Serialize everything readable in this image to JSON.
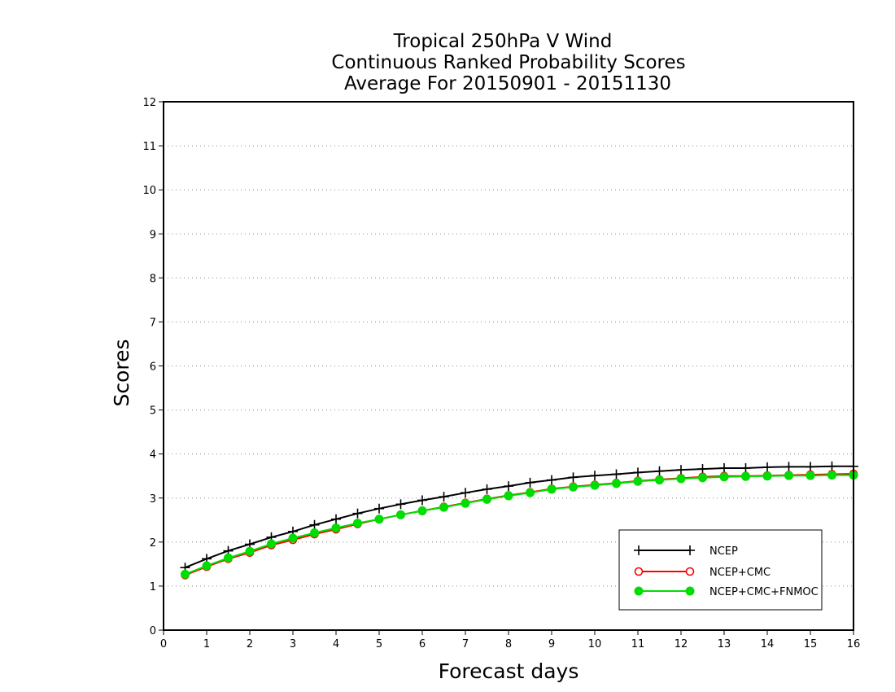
{
  "chart_data": {
    "type": "line",
    "title": [
      "Tropical 250hPa V Wind",
      "Continuous Ranked Probability Scores",
      "Average For 20150901 - 20151130"
    ],
    "xlabel": "Forecast days",
    "ylabel": "Scores",
    "xlim": [
      0,
      16
    ],
    "ylim": [
      0,
      12
    ],
    "xticks": [
      "0",
      "1",
      "2",
      "3",
      "4",
      "5",
      "6",
      "7",
      "8",
      "9",
      "10",
      "11",
      "12",
      "13",
      "14",
      "15",
      "16"
    ],
    "yticks": [
      "0",
      "1",
      "2",
      "3",
      "4",
      "5",
      "6",
      "7",
      "8",
      "9",
      "10",
      "11",
      "12"
    ],
    "grid": "horizontal dotted",
    "legend_position": "lower-right",
    "x": [
      0.5,
      1,
      1.5,
      2,
      2.5,
      3,
      3.5,
      4,
      4.5,
      5,
      5.5,
      6,
      6.5,
      7,
      7.5,
      8,
      8.5,
      9,
      9.5,
      10,
      10.5,
      11,
      11.5,
      12,
      12.5,
      13,
      13.5,
      14,
      14.5,
      15,
      15.5,
      16
    ],
    "series": [
      {
        "name": "NCEP",
        "color": "#000000",
        "marker": "plus",
        "values": [
          1.42,
          1.62,
          1.8,
          1.95,
          2.11,
          2.24,
          2.39,
          2.52,
          2.65,
          2.76,
          2.86,
          2.95,
          3.03,
          3.12,
          3.2,
          3.27,
          3.35,
          3.41,
          3.47,
          3.51,
          3.54,
          3.58,
          3.61,
          3.64,
          3.66,
          3.68,
          3.68,
          3.7,
          3.71,
          3.71,
          3.72,
          3.72
        ]
      },
      {
        "name": "NCEP+CMC",
        "color": "#ff0000",
        "marker": "open-circle",
        "values": [
          1.25,
          1.44,
          1.62,
          1.76,
          1.93,
          2.05,
          2.18,
          2.29,
          2.41,
          2.52,
          2.62,
          2.71,
          2.8,
          2.89,
          2.98,
          3.06,
          3.13,
          3.21,
          3.26,
          3.3,
          3.34,
          3.39,
          3.42,
          3.45,
          3.48,
          3.5,
          3.5,
          3.51,
          3.52,
          3.53,
          3.54,
          3.55
        ]
      },
      {
        "name": "NCEP+CMC+FNMOC",
        "color": "#00dd00",
        "marker": "filled-circle",
        "values": [
          1.27,
          1.46,
          1.64,
          1.79,
          1.96,
          2.09,
          2.21,
          2.32,
          2.43,
          2.52,
          2.62,
          2.71,
          2.79,
          2.88,
          2.97,
          3.05,
          3.12,
          3.2,
          3.25,
          3.29,
          3.33,
          3.38,
          3.41,
          3.44,
          3.46,
          3.48,
          3.49,
          3.5,
          3.51,
          3.51,
          3.52,
          3.52
        ]
      }
    ]
  }
}
